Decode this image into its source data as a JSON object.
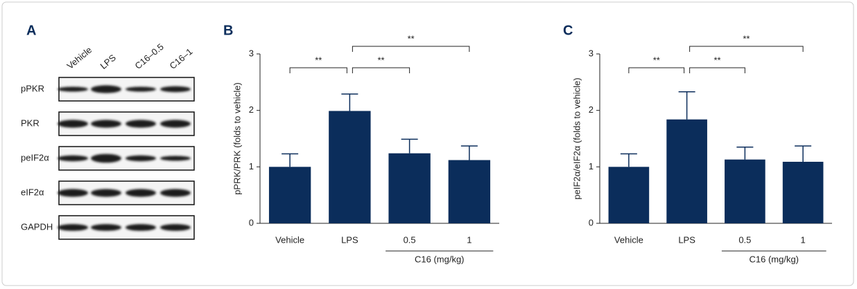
{
  "blot": {
    "label": "A",
    "lanes": [
      "Vehicle",
      "LPS",
      "C16–0.5",
      "C16–1"
    ],
    "rows": [
      "pPKR",
      "PKR",
      "peIF2α",
      "eIF2α",
      "GAPDH"
    ]
  },
  "chart_data": [
    {
      "type": "bar",
      "title": "B",
      "y_label": "pPRK/PRK (folds to vehicle)",
      "categories": [
        "Vehicle",
        "LPS",
        "0.5",
        "1"
      ],
      "values": [
        1.0,
        1.99,
        1.24,
        1.12
      ],
      "errors": [
        0.23,
        0.3,
        0.25,
        0.25
      ],
      "color": "#0b2d5b",
      "ylim": [
        0,
        3
      ],
      "yticks": [
        0,
        1,
        2,
        3
      ],
      "group": {
        "label": "C16 (mg/kg)",
        "categories": [
          "0.5",
          "1"
        ]
      },
      "comparisons": [
        {
          "label": "**",
          "groups": [
            "Vehicle",
            "LPS"
          ]
        },
        {
          "label": "**",
          "groups": [
            "LPS",
            "0.5"
          ]
        },
        {
          "label": "**",
          "groups": [
            "LPS",
            "1"
          ]
        }
      ]
    },
    {
      "type": "bar",
      "title": "C",
      "y_label": "peIF2α/eIF2α (folds to vehicle)",
      "categories": [
        "Vehicle",
        "LPS",
        "0.5",
        "1"
      ],
      "values": [
        1.0,
        1.84,
        1.13,
        1.09
      ],
      "errors": [
        0.23,
        0.49,
        0.22,
        0.28
      ],
      "color": "#0b2d5b",
      "ylim": [
        0,
        3
      ],
      "yticks": [
        0,
        1,
        2,
        3
      ],
      "group": {
        "label": "C16 (mg/kg)",
        "categories": [
          "0.5",
          "1"
        ]
      },
      "comparisons": [
        {
          "label": "**",
          "groups": [
            "Vehicle",
            "LPS"
          ]
        },
        {
          "label": "**",
          "groups": [
            "LPS",
            "0.5"
          ]
        },
        {
          "label": "**",
          "groups": [
            "LPS",
            "1"
          ]
        }
      ]
    }
  ]
}
